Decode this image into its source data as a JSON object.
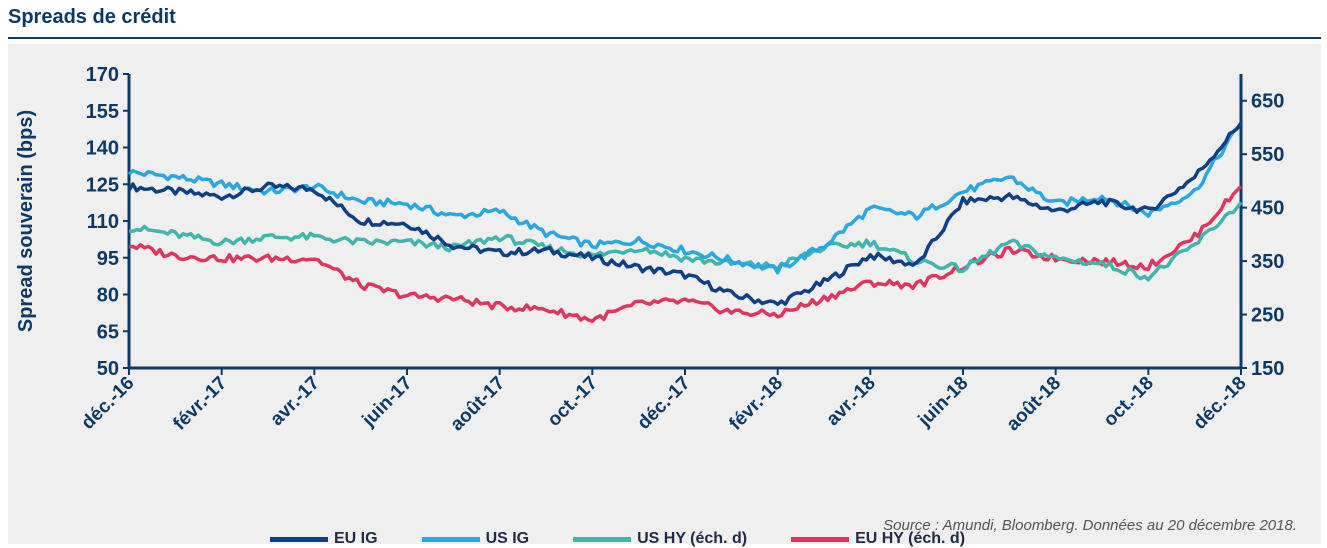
{
  "page": {
    "title": "Spreads de crédit",
    "source": "Source : Amundi, Bloomberg. Données au 20 décembre 2018."
  },
  "chart_data": {
    "type": "line",
    "ylabel": "Spread  souverain (bps)",
    "ylim": [
      50,
      170
    ],
    "yticks": [
      50,
      65,
      80,
      95,
      110,
      125,
      140,
      155,
      170
    ],
    "y2lim": [
      150,
      700
    ],
    "y2ticks": [
      150,
      250,
      350,
      450,
      550,
      650
    ],
    "x_ticks": [
      "déc.-16",
      "févr.-17",
      "avr.-17",
      "juin-17",
      "août-17",
      "oct.-17",
      "déc.-17",
      "févr.-18",
      "avr.-18",
      "juin-18",
      "août-18",
      "oct.-18",
      "déc.-18"
    ],
    "x": [
      "déc.-16",
      "janv.-17",
      "févr.-17",
      "mars-17",
      "avr.-17",
      "mai-17",
      "juin-17",
      "juil.-17",
      "août-17",
      "sept.-17",
      "oct.-17",
      "nov.-17",
      "déc.-17",
      "janv.-18",
      "févr.-18",
      "mars-18",
      "avr.-18",
      "mai-18",
      "juin-18",
      "juil.-18",
      "août-18",
      "sept.-18",
      "oct.-18",
      "nov.-18",
      "déc.-18"
    ],
    "series": [
      {
        "name": "EU IG",
        "axis": "left",
        "color": "#0f3f86",
        "values": [
          124,
          122,
          120,
          124,
          123,
          110,
          109,
          100,
          97,
          98,
          95,
          91,
          88,
          80,
          76,
          85,
          96,
          92,
          118,
          120,
          114,
          118,
          114,
          128,
          150
        ]
      },
      {
        "name": "US IG",
        "axis": "left",
        "color": "#28a7e2",
        "values": [
          130,
          128,
          125,
          122,
          124,
          118,
          117,
          112,
          114,
          105,
          100,
          102,
          98,
          94,
          90,
          100,
          115,
          112,
          122,
          128,
          117,
          120,
          113,
          122,
          150
        ]
      },
      {
        "name": "US HY (éch. d)",
        "axis": "right",
        "color": "#3fb5ab",
        "values": [
          413,
          400,
          385,
          395,
          395,
          385,
          385,
          375,
          395,
          375,
          360,
          375,
          355,
          345,
          340,
          375,
          385,
          350,
          335,
          385,
          355,
          345,
          320,
          380,
          460
        ]
      },
      {
        "name": "EU HY (éch. d)",
        "axis": "right",
        "color": "#e0355e",
        "values": [
          380,
          360,
          355,
          355,
          355,
          305,
          285,
          280,
          265,
          260,
          240,
          270,
          275,
          255,
          250,
          280,
          310,
          305,
          340,
          370,
          355,
          350,
          340,
          395,
          490
        ]
      }
    ],
    "legend_position": "bottom",
    "grid": false
  }
}
